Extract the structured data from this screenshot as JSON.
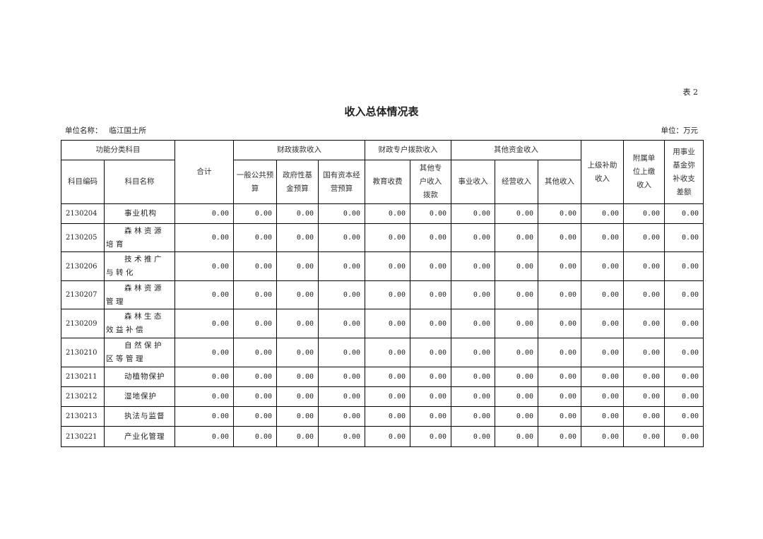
{
  "doc": {
    "table_tag": "表 2",
    "title": "收入总体情况表",
    "unit_name_label": "单位名称：",
    "unit_name_value": "临江国土所",
    "unit_label": "单位：万元"
  },
  "headers": {
    "func_subject": "功能分类科目",
    "total": "合计",
    "fiscal": "财政拨款收入",
    "fiscal_special": "财政专户拨款收入",
    "other_funds": "其他资金收入",
    "superior_subsidy": "上级补助收入",
    "affiliated": "附属单位上缴收入",
    "fund_offset": "用事业基金弥补收支差额",
    "code": "科目编码",
    "name": "科目名称",
    "general_budget": "一般公共预算",
    "gov_fund": "政府性基金预算",
    "state_capital": "国有资本经营预算",
    "edu_fee": "教育收费",
    "other_special": "其他专户收入拨款",
    "business_income": "事业收入",
    "operating_income": "经营收入",
    "other_income": "其他收入"
  },
  "rows": [
    {
      "code": "2130204",
      "name": "事业机构",
      "values": [
        "0.00",
        "0.00",
        "0.00",
        "0.00",
        "0.00",
        "0.00",
        "0.00",
        "0.00",
        "0.00",
        "0.00",
        "0.00",
        "0.00"
      ]
    },
    {
      "code": "2130205",
      "name": "森林资源培育",
      "values": [
        "0.00",
        "0.00",
        "0.00",
        "0.00",
        "0.00",
        "0.00",
        "0.00",
        "0.00",
        "0.00",
        "0.00",
        "0.00",
        "0.00"
      ]
    },
    {
      "code": "2130206",
      "name": "技术推广与转化",
      "values": [
        "0.00",
        "0.00",
        "0.00",
        "0.00",
        "0.00",
        "0.00",
        "0.00",
        "0.00",
        "0.00",
        "0.00",
        "0.00",
        "0.00"
      ]
    },
    {
      "code": "2130207",
      "name": "森林资源管理",
      "values": [
        "0.00",
        "0.00",
        "0.00",
        "0.00",
        "0.00",
        "0.00",
        "0.00",
        "0.00",
        "0.00",
        "0.00",
        "0.00",
        "0.00"
      ]
    },
    {
      "code": "2130209",
      "name": "森林生态效益补偿",
      "values": [
        "0.00",
        "0.00",
        "0.00",
        "0.00",
        "0.00",
        "0.00",
        "0.00",
        "0.00",
        "0.00",
        "0.00",
        "0.00",
        "0.00"
      ]
    },
    {
      "code": "2130210",
      "name": "自然保护区等管理",
      "values": [
        "0.00",
        "0.00",
        "0.00",
        "0.00",
        "0.00",
        "0.00",
        "0.00",
        "0.00",
        "0.00",
        "0.00",
        "0.00",
        "0.00"
      ]
    },
    {
      "code": "2130211",
      "name": "动植物保护",
      "values": [
        "0.00",
        "0.00",
        "0.00",
        "0.00",
        "0.00",
        "0.00",
        "0.00",
        "0.00",
        "0.00",
        "0.00",
        "0.00",
        "0.00"
      ]
    },
    {
      "code": "2130212",
      "name": "湿地保护",
      "values": [
        "0.00",
        "0.00",
        "0.00",
        "0.00",
        "0.00",
        "0.00",
        "0.00",
        "0.00",
        "0.00",
        "0.00",
        "0.00",
        "0.00"
      ]
    },
    {
      "code": "2130213",
      "name": "执法与监督",
      "values": [
        "0.00",
        "0.00",
        "0.00",
        "0.00",
        "0.00",
        "0.00",
        "0.00",
        "0.00",
        "0.00",
        "0.00",
        "0.00",
        "0.00"
      ]
    },
    {
      "code": "2130221",
      "name": "产业化管理",
      "values": [
        "0.00",
        "0.00",
        "0.00",
        "0.00",
        "0.00",
        "0.00",
        "0.00",
        "0.00",
        "0.00",
        "0.00",
        "0.00",
        "0.00"
      ]
    }
  ]
}
